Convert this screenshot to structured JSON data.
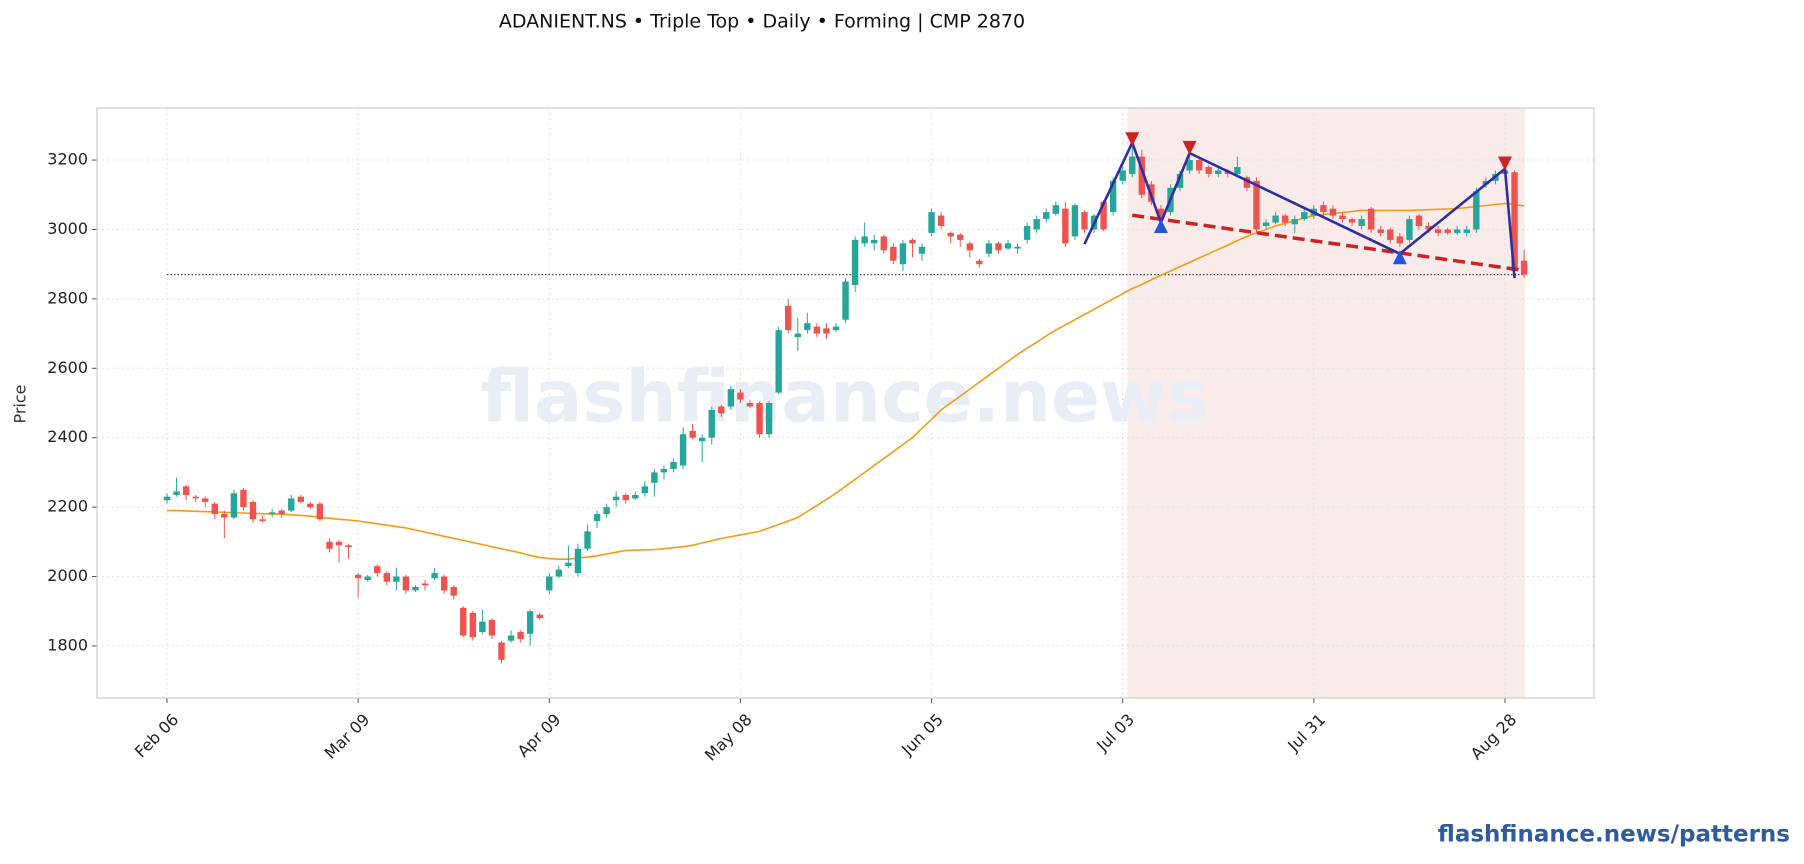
{
  "chart_data": {
    "type": "candlestick",
    "title": "ADANIENT.NS  •  Triple Top  •  Daily  •  Forming  |  CMP 2870",
    "y_label": "Price",
    "watermark": "flashfinance.news",
    "footer": "flashfinance.news/patterns",
    "grid": true,
    "ylim": [
      1650,
      3350
    ],
    "yticks": [
      1800,
      2000,
      2200,
      2400,
      2600,
      2800,
      3000,
      3200
    ],
    "categories": [
      "Feb 06",
      null,
      null,
      null,
      null,
      null,
      null,
      null,
      null,
      null,
      null,
      null,
      null,
      null,
      null,
      null,
      null,
      null,
      null,
      null,
      "Mar 09",
      null,
      null,
      null,
      null,
      null,
      null,
      null,
      null,
      null,
      null,
      null,
      null,
      null,
      null,
      null,
      null,
      null,
      null,
      null,
      "Apr 09",
      null,
      null,
      null,
      null,
      null,
      null,
      null,
      null,
      null,
      null,
      null,
      null,
      null,
      null,
      null,
      null,
      null,
      null,
      null,
      "May 08",
      null,
      null,
      null,
      null,
      null,
      null,
      null,
      null,
      null,
      null,
      null,
      null,
      null,
      null,
      null,
      null,
      null,
      null,
      null,
      "Jun 05",
      null,
      null,
      null,
      null,
      null,
      null,
      null,
      null,
      null,
      null,
      null,
      null,
      null,
      null,
      null,
      null,
      null,
      null,
      null,
      "Jul 03",
      null,
      null,
      null,
      null,
      null,
      null,
      null,
      null,
      null,
      null,
      null,
      null,
      null,
      null,
      null,
      null,
      null,
      null,
      null,
      "Jul 31",
      null,
      null,
      null,
      null,
      null,
      null,
      null,
      null,
      null,
      null,
      null,
      null,
      null,
      null,
      null,
      null,
      null,
      null,
      null,
      "Aug 28",
      null,
      null
    ],
    "series": [
      {
        "type": "candlestick",
        "up_color": "#26a69a",
        "down_color": "#ef5350",
        "ohlc": [
          [
            2220,
            2240,
            2210,
            2230
          ],
          [
            2235,
            2285,
            2230,
            2245
          ],
          [
            2260,
            2265,
            2220,
            2235
          ],
          [
            2230,
            2235,
            2215,
            2225
          ],
          [
            2225,
            2230,
            2200,
            2215
          ],
          [
            2210,
            2215,
            2165,
            2180
          ],
          [
            2180,
            2190,
            2110,
            2170
          ],
          [
            2170,
            2250,
            2165,
            2240
          ],
          [
            2250,
            2255,
            2190,
            2200
          ],
          [
            2215,
            2220,
            2155,
            2165
          ],
          [
            2165,
            2175,
            2155,
            2160
          ],
          [
            2180,
            2195,
            2170,
            2185
          ],
          [
            2190,
            2195,
            2170,
            2180
          ],
          [
            2190,
            2235,
            2185,
            2225
          ],
          [
            2230,
            2235,
            2210,
            2215
          ],
          [
            2210,
            2215,
            2195,
            2200
          ],
          [
            2210,
            2215,
            2160,
            2165
          ],
          [
            2100,
            2110,
            2070,
            2080
          ],
          [
            2100,
            2105,
            2040,
            2090
          ],
          [
            2090,
            2095,
            2050,
            2085
          ],
          [
            2005,
            2010,
            1940,
            1995
          ],
          [
            1990,
            2005,
            1985,
            2000
          ],
          [
            2030,
            2035,
            2000,
            2010
          ],
          [
            2010,
            2015,
            1975,
            1985
          ],
          [
            1985,
            2025,
            1960,
            2000
          ],
          [
            2000,
            2005,
            1950,
            1960
          ],
          [
            1960,
            1975,
            1955,
            1970
          ],
          [
            1980,
            1990,
            1960,
            1975
          ],
          [
            1995,
            2025,
            1990,
            2010
          ],
          [
            2000,
            2005,
            1950,
            1960
          ],
          [
            1970,
            1975,
            1935,
            1945
          ],
          [
            1910,
            1915,
            1825,
            1830
          ],
          [
            1895,
            1900,
            1815,
            1825
          ],
          [
            1840,
            1905,
            1835,
            1870
          ],
          [
            1875,
            1880,
            1820,
            1830
          ],
          [
            1810,
            1815,
            1750,
            1760
          ],
          [
            1815,
            1845,
            1810,
            1830
          ],
          [
            1840,
            1845,
            1810,
            1820
          ],
          [
            1835,
            1905,
            1800,
            1900
          ],
          [
            1890,
            1895,
            1875,
            1880
          ],
          [
            1960,
            2010,
            1950,
            2000
          ],
          [
            2000,
            2030,
            1995,
            2020
          ],
          [
            2030,
            2090,
            2025,
            2040
          ],
          [
            2010,
            2095,
            2000,
            2080
          ],
          [
            2080,
            2150,
            2075,
            2130
          ],
          [
            2160,
            2190,
            2140,
            2180
          ],
          [
            2180,
            2210,
            2170,
            2200
          ],
          [
            2220,
            2245,
            2200,
            2230
          ],
          [
            2235,
            2240,
            2210,
            2220
          ],
          [
            2225,
            2245,
            2220,
            2235
          ],
          [
            2240,
            2275,
            2230,
            2260
          ],
          [
            2270,
            2310,
            2230,
            2300
          ],
          [
            2300,
            2320,
            2280,
            2310
          ],
          [
            2310,
            2340,
            2300,
            2330
          ],
          [
            2320,
            2430,
            2310,
            2410
          ],
          [
            2420,
            2440,
            2395,
            2400
          ],
          [
            2390,
            2410,
            2330,
            2400
          ],
          [
            2400,
            2490,
            2380,
            2480
          ],
          [
            2490,
            2495,
            2460,
            2470
          ],
          [
            2490,
            2550,
            2480,
            2540
          ],
          [
            2530,
            2540,
            2500,
            2510
          ],
          [
            2500,
            2510,
            2485,
            2490
          ],
          [
            2500,
            2505,
            2400,
            2410
          ],
          [
            2410,
            2505,
            2400,
            2500
          ],
          [
            2530,
            2720,
            2525,
            2710
          ],
          [
            2780,
            2800,
            2700,
            2710
          ],
          [
            2690,
            2745,
            2650,
            2700
          ],
          [
            2710,
            2760,
            2700,
            2730
          ],
          [
            2720,
            2730,
            2690,
            2700
          ],
          [
            2715,
            2730,
            2685,
            2700
          ],
          [
            2710,
            2730,
            2705,
            2720
          ],
          [
            2740,
            2860,
            2730,
            2850
          ],
          [
            2840,
            2980,
            2820,
            2970
          ],
          [
            2960,
            3020,
            2950,
            2980
          ],
          [
            2960,
            2985,
            2940,
            2970
          ],
          [
            2980,
            2985,
            2930,
            2940
          ],
          [
            2950,
            2960,
            2900,
            2910
          ],
          [
            2900,
            2970,
            2880,
            2960
          ],
          [
            2970,
            2975,
            2920,
            2960
          ],
          [
            2930,
            2960,
            2910,
            2950
          ],
          [
            2990,
            3060,
            2980,
            3050
          ],
          [
            3040,
            3050,
            3000,
            3010
          ],
          [
            2990,
            2995,
            2960,
            2980
          ],
          [
            2985,
            2990,
            2950,
            2970
          ],
          [
            2960,
            2965,
            2920,
            2940
          ],
          [
            2910,
            2915,
            2890,
            2900
          ],
          [
            2930,
            2970,
            2920,
            2960
          ],
          [
            2960,
            2965,
            2930,
            2940
          ],
          [
            2945,
            2970,
            2940,
            2960
          ],
          [
            2945,
            2960,
            2930,
            2950
          ],
          [
            2970,
            3020,
            2960,
            3010
          ],
          [
            3000,
            3040,
            2990,
            3030
          ],
          [
            3030,
            3060,
            3020,
            3050
          ],
          [
            3045,
            3080,
            3040,
            3070
          ],
          [
            3060,
            3080,
            2950,
            2960
          ],
          [
            2980,
            3075,
            2970,
            3070
          ],
          [
            3050,
            3055,
            2990,
            3000
          ],
          [
            3000,
            3045,
            2990,
            3040
          ],
          [
            3080,
            3085,
            2995,
            3000
          ],
          [
            3050,
            3150,
            3040,
            3140
          ],
          [
            3140,
            3180,
            3130,
            3170
          ],
          [
            3160,
            3250,
            3150,
            3210
          ],
          [
            3210,
            3230,
            3090,
            3100
          ],
          [
            3130,
            3140,
            3070,
            3080
          ],
          [
            3060,
            3070,
            3010,
            3030
          ],
          [
            3050,
            3130,
            3040,
            3120
          ],
          [
            3120,
            3170,
            3110,
            3160
          ],
          [
            3170,
            3225,
            3160,
            3200
          ],
          [
            3200,
            3210,
            3160,
            3170
          ],
          [
            3180,
            3185,
            3150,
            3160
          ],
          [
            3160,
            3180,
            3150,
            3170
          ],
          [
            3170,
            3175,
            3150,
            3160
          ],
          [
            3160,
            3210,
            3155,
            3180
          ],
          [
            3150,
            3155,
            3110,
            3120
          ],
          [
            3140,
            3150,
            2990,
            3000
          ],
          [
            3010,
            3030,
            3000,
            3020
          ],
          [
            3020,
            3050,
            3015,
            3040
          ],
          [
            3040,
            3045,
            3010,
            3020
          ],
          [
            3015,
            3040,
            2990,
            3030
          ],
          [
            3030,
            3060,
            3025,
            3050
          ],
          [
            3040,
            3070,
            3030,
            3060
          ],
          [
            3070,
            3080,
            3040,
            3050
          ],
          [
            3060,
            3070,
            3030,
            3040
          ],
          [
            3040,
            3050,
            3020,
            3030
          ],
          [
            3030,
            3035,
            3010,
            3020
          ],
          [
            3010,
            3040,
            3000,
            3030
          ],
          [
            3060,
            3065,
            2990,
            3000
          ],
          [
            3000,
            3010,
            2980,
            2990
          ],
          [
            3000,
            3005,
            2960,
            2970
          ],
          [
            2980,
            2990,
            2950,
            2960
          ],
          [
            2970,
            3040,
            2960,
            3030
          ],
          [
            3040,
            3045,
            3000,
            3010
          ],
          [
            3010,
            3020,
            2990,
            3000
          ],
          [
            3000,
            3010,
            2980,
            2990
          ],
          [
            3000,
            3005,
            2985,
            2990
          ],
          [
            2990,
            3010,
            2985,
            3000
          ],
          [
            2990,
            3010,
            2980,
            3000
          ],
          [
            3000,
            3120,
            2990,
            3110
          ],
          [
            3130,
            3150,
            3120,
            3140
          ],
          [
            3140,
            3170,
            3130,
            3160
          ],
          [
            3160,
            3180,
            3150,
            3170
          ],
          [
            3165,
            3170,
            2860,
            2880
          ],
          [
            2910,
            2940,
            2860,
            2870
          ]
        ]
      },
      {
        "type": "line",
        "color": "#f39c12",
        "values": [
          2190,
          2190,
          2189,
          2188,
          2187,
          2186,
          2185,
          2184,
          2183,
          2182,
          2181,
          2180,
          2180,
          2178,
          2176,
          2174,
          2170,
          2168,
          2165,
          2163,
          2160,
          2156,
          2152,
          2148,
          2144,
          2140,
          2134,
          2128,
          2122,
          2116,
          2110,
          2104,
          2098,
          2092,
          2086,
          2080,
          2074,
          2068,
          2061,
          2055,
          2052,
          2050,
          2050,
          2053,
          2056,
          2060,
          2065,
          2070,
          2075,
          2076,
          2077,
          2078,
          2080,
          2083,
          2086,
          2090,
          2097,
          2103,
          2110,
          2115,
          2120,
          2125,
          2130,
          2140,
          2150,
          2160,
          2170,
          2187,
          2205,
          2222,
          2240,
          2260,
          2280,
          2300,
          2320,
          2340,
          2360,
          2380,
          2400,
          2427,
          2453,
          2480,
          2500,
          2520,
          2540,
          2560,
          2580,
          2600,
          2620,
          2640,
          2658,
          2675,
          2693,
          2710,
          2725,
          2740,
          2755,
          2770,
          2785,
          2800,
          2815,
          2830,
          2842,
          2855,
          2868,
          2880,
          2893,
          2905,
          2918,
          2930,
          2943,
          2955,
          2968,
          2980,
          2990,
          3000,
          3010,
          3018,
          3025,
          3033,
          3040,
          3043,
          3046,
          3049,
          3052,
          3055,
          3055,
          3055,
          3055,
          3055,
          3055,
          3056,
          3057,
          3058,
          3059,
          3060,
          3063,
          3066,
          3069,
          3072,
          3075,
          3072,
          3068
        ]
      }
    ],
    "hline": {
      "value": 2870,
      "color": "#444444"
    },
    "shade": {
      "x": [
        101,
        142
      ],
      "color": "#f6dada"
    },
    "zigzag": {
      "x": [
        96,
        101,
        104,
        107,
        129,
        140,
        141
      ],
      "values": [
        2958,
        3250,
        3020,
        3220,
        2930,
        3175,
        2860
      ],
      "color": "#2d2fa0"
    },
    "neckline": {
      "x": [
        101,
        142
      ],
      "values": [
        3041,
        2882
      ],
      "color": "#cc2222",
      "dashed": true
    },
    "peaks": {
      "x": [
        101,
        107,
        140
      ],
      "values": [
        3260,
        3235,
        3190
      ],
      "color": "#cc2222"
    },
    "troughs": {
      "x": [
        104,
        129
      ],
      "values": [
        3010,
        2920
      ],
      "color": "#2255dd"
    }
  }
}
